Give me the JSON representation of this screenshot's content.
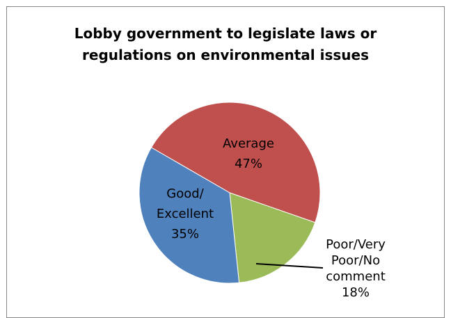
{
  "chart_data": {
    "type": "pie",
    "title_lines": [
      "Lobby government to legislate laws or",
      "regulations on environmental issues"
    ],
    "slices": [
      {
        "name": "Average",
        "value": 47,
        "label_lines": [
          "Average",
          "47%"
        ],
        "color": "#c0504d"
      },
      {
        "name": "Poor/Very Poor/No comment",
        "value": 18,
        "label_lines": [
          "Poor/Very",
          "Poor/No",
          "comment",
          "18%"
        ],
        "color": "#9bbb59"
      },
      {
        "name": "Good/ Excellent",
        "value": 35,
        "label_lines": [
          "Good/",
          "Excellent",
          "35%"
        ],
        "color": "#4f81bd"
      }
    ],
    "legend": "none"
  }
}
